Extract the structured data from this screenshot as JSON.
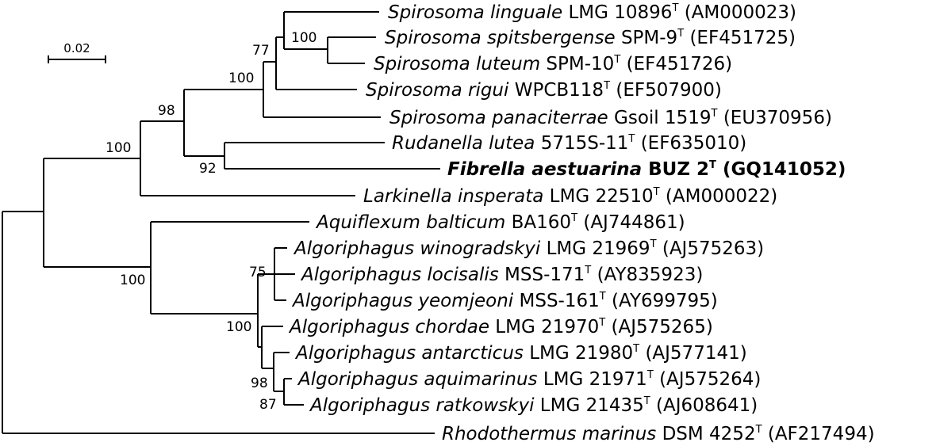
{
  "scale_bar": {
    "label": "0.02"
  },
  "taxa": [
    {
      "genus_species": "Spirosoma linguale",
      "strain": "LMG 10896",
      "sup": "T",
      "accession": "(AM000023)",
      "bold": false
    },
    {
      "genus_species": "Spirosoma spitsbergense",
      "strain": "SPM-9",
      "sup": "T",
      "accession": "(EF451725)",
      "bold": false
    },
    {
      "genus_species": "Spirosoma luteum",
      "strain": "SPM-10",
      "sup": "T",
      "accession": "(EF451726)",
      "bold": false
    },
    {
      "genus_species": "Spirosoma rigui",
      "strain": "WPCB118",
      "sup": "T",
      "accession": "(EF507900)",
      "bold": false
    },
    {
      "genus_species": "Spirosoma panaciterrae",
      "strain": "Gsoil 1519",
      "sup": "T",
      "accession": "(EU370956)",
      "bold": false
    },
    {
      "genus_species": "Rudanella lutea",
      "strain": "5715S-11",
      "sup": "T",
      "accession": "(EF635010)",
      "bold": false
    },
    {
      "genus_species": "Fibrella aestuarina",
      "strain": "BUZ 2",
      "sup": "T",
      "accession": "(GQ141052)",
      "bold": true
    },
    {
      "genus_species": "Larkinella insperata",
      "strain": "LMG 22510",
      "sup": "T",
      "accession": "(AM000022)",
      "bold": false
    },
    {
      "genus_species": "Aquiflexum balticum",
      "strain": "BA160",
      "sup": "T",
      "accession": "(AJ744861)",
      "bold": false
    },
    {
      "genus_species": "Algoriphagus winogradskyi",
      "strain": "LMG 21969",
      "sup": "T",
      "accession": "(AJ575263)",
      "bold": false
    },
    {
      "genus_species": "Algoriphagus locisalis",
      "strain": "MSS-171",
      "sup": "T",
      "accession": "(AY835923)",
      "bold": false
    },
    {
      "genus_species": "Algoriphagus yeomjeoni",
      "strain": "MSS-161",
      "sup": "T",
      "accession": "(AY699795)",
      "bold": false
    },
    {
      "genus_species": "Algoriphagus chordae",
      "strain": "LMG 21970",
      "sup": "T",
      "accession": "(AJ575265)",
      "bold": false
    },
    {
      "genus_species": "Algoriphagus antarcticus",
      "strain": "LMG 21980",
      "sup": "T",
      "accession": "(AJ577141)",
      "bold": false
    },
    {
      "genus_species": "Algoriphagus aquimarinus",
      "strain": "LMG 21971",
      "sup": "T",
      "accession": "(AJ575264)",
      "bold": false
    },
    {
      "genus_species": "Algoriphagus ratkowskyi",
      "strain": "LMG 21435",
      "sup": "T",
      "accession": "(AJ608641)",
      "bold": false
    },
    {
      "genus_species": "Rhodothermus marinus",
      "strain": "DSM 4252",
      "sup": "T",
      "accession": "(AF217494)",
      "bold": false
    }
  ],
  "bootstrap_values": [
    "100",
    "77",
    "100",
    "98",
    "100",
    "92",
    "75",
    "100",
    "100",
    "98",
    "87"
  ]
}
